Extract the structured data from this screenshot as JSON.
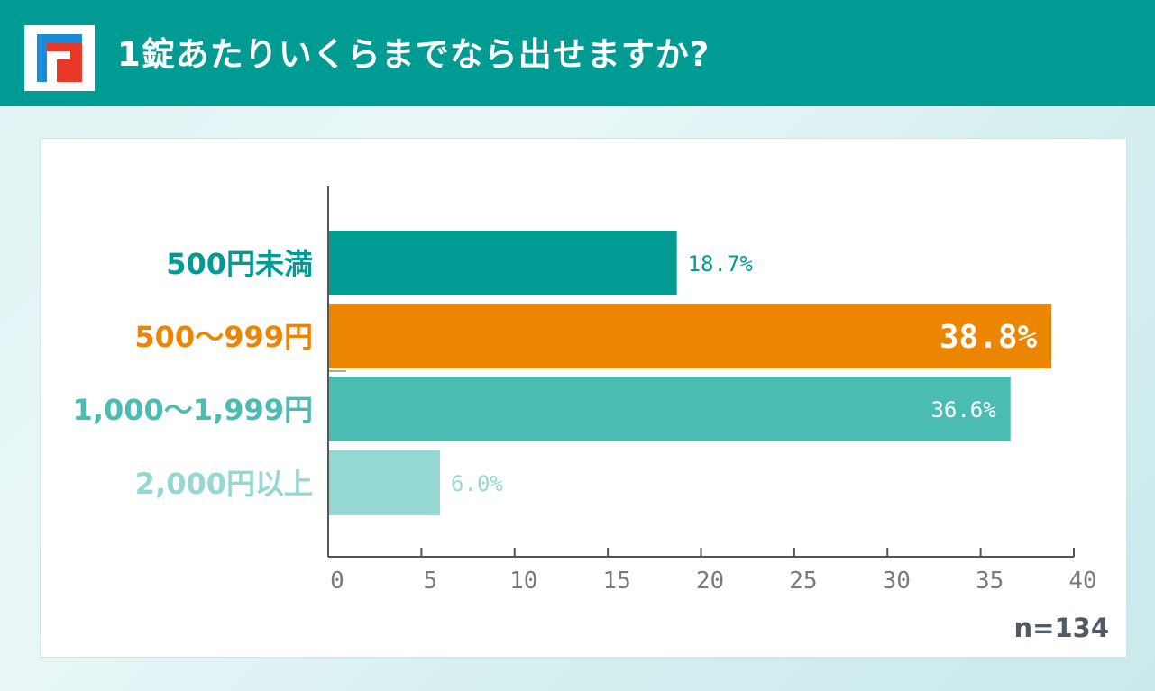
{
  "header": {
    "title": "1錠あたりいくらまでなら出せますか?",
    "logo_icon": "brand-logo-icon"
  },
  "chart_data": {
    "type": "bar",
    "orientation": "horizontal",
    "categories": [
      "500円未満",
      "500〜999円",
      "1,000〜1,999円",
      "2,000円以上"
    ],
    "values": [
      18.7,
      38.8,
      36.6,
      6.0
    ],
    "value_labels": [
      "18.7%",
      "38.8%",
      "36.6%",
      "6.0%"
    ],
    "colors": [
      "#009b93",
      "#ec8500",
      "#4bbcb2",
      "#95d8d1"
    ],
    "xlim": [
      0,
      40
    ],
    "xticks": [
      "0",
      "5",
      "10",
      "15",
      "20",
      "25",
      "30",
      "35",
      "40"
    ],
    "grid": false,
    "sample_size": "n=134"
  }
}
